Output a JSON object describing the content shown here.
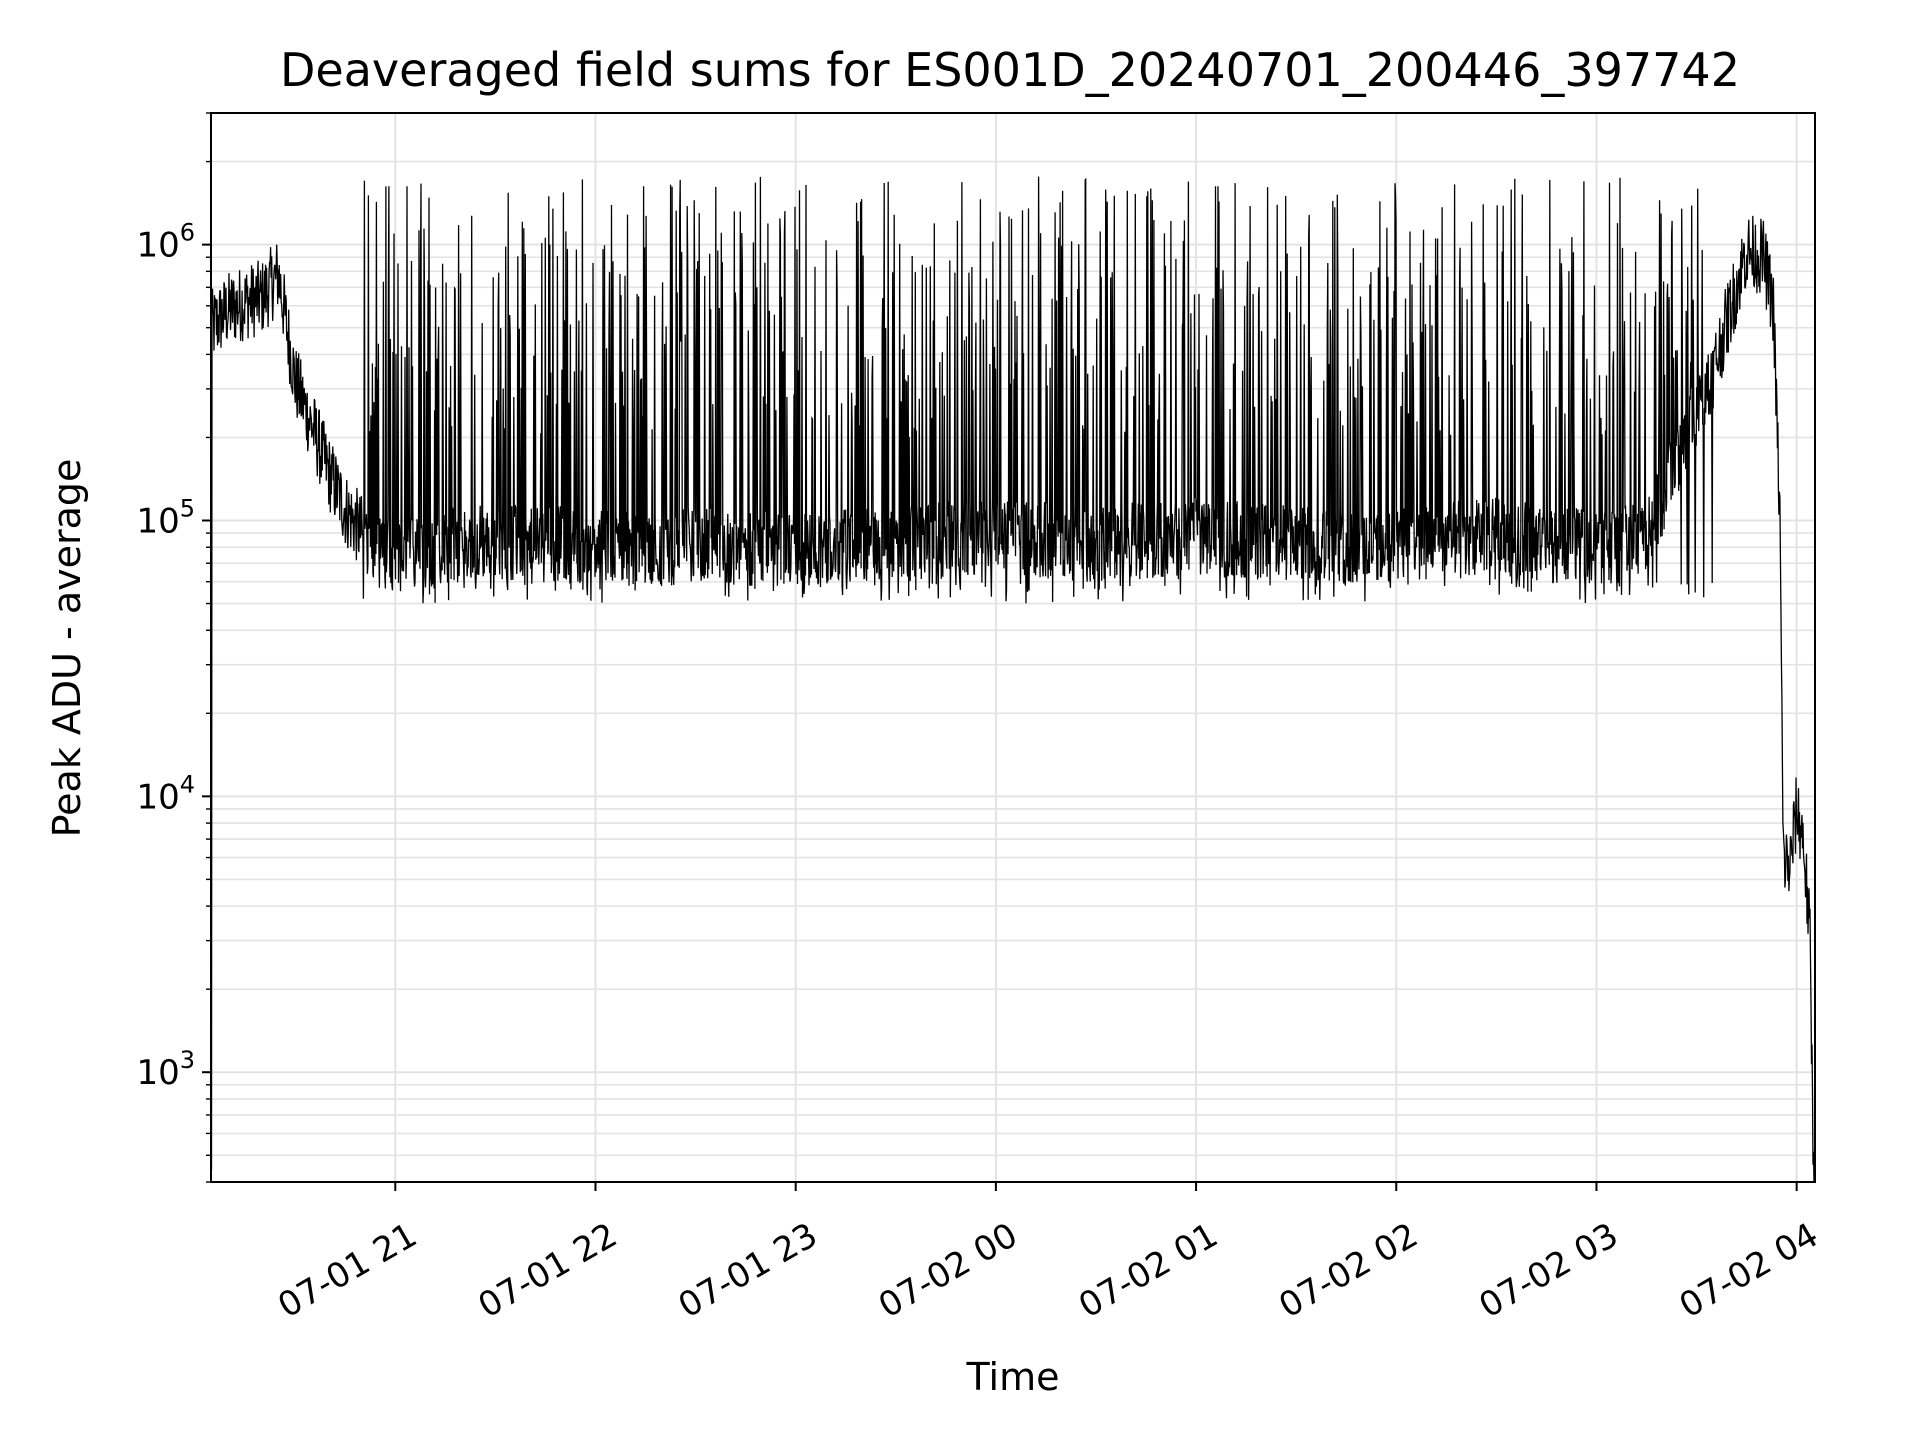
{
  "chart_data": {
    "type": "line",
    "title": "Deaveraged field sums for ES001D_20240701_200446_397742",
    "xlabel": "Time",
    "ylabel": "Peak ADU - average",
    "y_scale": "log",
    "ylim": [
      400,
      3000000
    ],
    "xlim": [
      "2024-07-01 20:04:46",
      "2024-07-02 04:05:30"
    ],
    "x_ticks": [
      "07-01 21",
      "07-01 22",
      "07-01 23",
      "07-02 00",
      "07-02 01",
      "07-02 02",
      "07-02 03",
      "07-02 04"
    ],
    "y_ticks": [
      {
        "value": 1000,
        "base": "10",
        "exp": "3"
      },
      {
        "value": 10000,
        "base": "10",
        "exp": "4"
      },
      {
        "value": 100000,
        "base": "10",
        "exp": "5"
      },
      {
        "value": 1000000,
        "base": "10",
        "exp": "6"
      }
    ],
    "grid": true,
    "line_color": "#000000",
    "series": [
      {
        "x": [
          "2024-07-01 20:05",
          "2024-07-01 20:10",
          "2024-07-01 20:15",
          "2024-07-01 20:20",
          "2024-07-01 20:25",
          "2024-07-01 20:30",
          "2024-07-01 20:35",
          "2024-07-01 20:40",
          "2024-07-01 20:45",
          "2024-07-01 20:50",
          "2024-07-01 20:55",
          "2024-07-01 21:00",
          "2024-07-01 21:10",
          "2024-07-01 21:20",
          "2024-07-01 21:30",
          "2024-07-01 21:40",
          "2024-07-01 21:50",
          "2024-07-01 22:00",
          "2024-07-01 22:15",
          "2024-07-01 22:30",
          "2024-07-01 22:45",
          "2024-07-01 23:00",
          "2024-07-01 23:15",
          "2024-07-01 23:30",
          "2024-07-01 23:45",
          "2024-07-02 00:00",
          "2024-07-02 00:15",
          "2024-07-02 00:30",
          "2024-07-02 00:45",
          "2024-07-02 01:00",
          "2024-07-02 01:15",
          "2024-07-02 01:30",
          "2024-07-02 01:45",
          "2024-07-02 02:00",
          "2024-07-02 02:15",
          "2024-07-02 02:30",
          "2024-07-02 02:45",
          "2024-07-02 03:00",
          "2024-07-02 03:15",
          "2024-07-02 03:25",
          "2024-07-02 03:35",
          "2024-07-02 03:45",
          "2024-07-02 03:50",
          "2024-07-02 03:53",
          "2024-07-02 03:55",
          "2024-07-02 03:56",
          "2024-07-02 03:58",
          "2024-07-02 04:00",
          "2024-07-02 04:02",
          "2024-07-02 04:04",
          "2024-07-02 04:05"
        ],
        "y": [
          500000,
          580000,
          620000,
          640000,
          780000,
          320000,
          220000,
          150000,
          110000,
          90000,
          80000,
          75000,
          78000,
          82000,
          85000,
          80000,
          82000,
          80000,
          78000,
          82000,
          80000,
          78000,
          80000,
          82000,
          85000,
          90000,
          85000,
          82000,
          85000,
          88000,
          85000,
          82000,
          80000,
          82000,
          85000,
          88000,
          82000,
          80000,
          85000,
          180000,
          350000,
          950000,
          900000,
          600000,
          100000,
          6000,
          5500,
          9000,
          7000,
          3000,
          500
        ]
      }
    ]
  }
}
